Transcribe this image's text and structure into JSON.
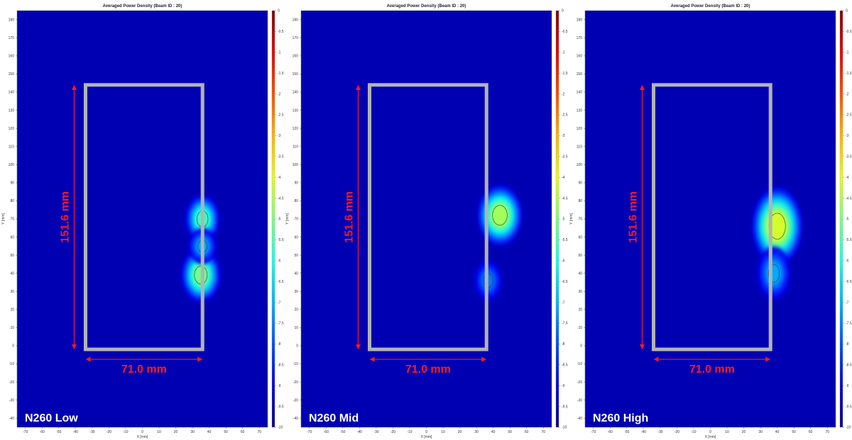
{
  "chart_data": [
    {
      "type": "heatmap",
      "title": "Averaged Power Density (Beam ID : 20)",
      "xlabel": "X [mm]",
      "ylabel": "Y [mm]",
      "xlim": [
        -75,
        75
      ],
      "ylim": [
        -45,
        185
      ],
      "x_ticks": [
        "-70",
        "-60",
        "-50",
        "-40",
        "-30",
        "-20",
        "-10",
        "0",
        "10",
        "20",
        "30",
        "40",
        "50",
        "60",
        "70"
      ],
      "y_ticks": [
        "-40",
        "-30",
        "-20",
        "-10",
        "0",
        "10",
        "20",
        "30",
        "40",
        "50",
        "60",
        "70",
        "80",
        "90",
        "100",
        "110",
        "120",
        "130",
        "140",
        "150",
        "160",
        "170",
        "180"
      ],
      "colorbar": {
        "ticks": [
          "0",
          "-0.5",
          "-1",
          "-1.5",
          "-2",
          "-2.5",
          "-3",
          "-3.5",
          "-4",
          "-4.5",
          "-5",
          "-5.5",
          "-6",
          "-6.5",
          "-7",
          "-7.5",
          "-8",
          "-8.5",
          "-9",
          "-9.5",
          "-10"
        ],
        "range": [
          -10,
          0
        ],
        "colormap": "jet"
      },
      "band_label": "N260 Low",
      "device_outline": {
        "x": [
          -34,
          36
        ],
        "y": [
          -2,
          144
        ],
        "color": "#b3b3b3"
      },
      "dimensions": {
        "height_label": "151.6 mm",
        "width_label": "71.0 mm",
        "color": "#ff1a1a"
      },
      "hotspots": [
        {
          "x": 36,
          "y": 70,
          "sx": 6,
          "sy": 8,
          "peak": -5.5
        },
        {
          "x": 35,
          "y": 39,
          "sx": 7,
          "sy": 9,
          "peak": -5.0
        },
        {
          "x": 36,
          "y": 55,
          "sx": 5,
          "sy": 6,
          "peak": -7.0
        }
      ]
    },
    {
      "type": "heatmap",
      "title": "Averaged Power Density (Beam ID : 20)",
      "xlabel": "X [mm]",
      "ylabel": "Y [mm]",
      "xlim": [
        -75,
        75
      ],
      "ylim": [
        -45,
        185
      ],
      "x_ticks": [
        "-70",
        "-60",
        "-50",
        "-40",
        "-30",
        "-20",
        "-10",
        "0",
        "10",
        "20",
        "30",
        "40",
        "50",
        "60",
        "70"
      ],
      "y_ticks": [
        "-40",
        "-30",
        "-20",
        "-10",
        "0",
        "10",
        "20",
        "30",
        "40",
        "50",
        "60",
        "70",
        "80",
        "90",
        "100",
        "110",
        "120",
        "130",
        "140",
        "150",
        "160",
        "170",
        "180"
      ],
      "colorbar": {
        "ticks": [
          "0",
          "-0.5",
          "-1",
          "-1.5",
          "-2",
          "-2.5",
          "-3",
          "-3.5",
          "-4",
          "-4.5",
          "-5",
          "-5.5",
          "-6",
          "-6.5",
          "-7",
          "-7.5",
          "-8",
          "-8.5",
          "-9",
          "-9.5",
          "-10"
        ],
        "range": [
          -10,
          0
        ],
        "colormap": "jet"
      },
      "band_label": "N260 Mid",
      "device_outline": {
        "x": [
          -34,
          36
        ],
        "y": [
          -2,
          144
        ],
        "color": "#b3b3b3"
      },
      "dimensions": {
        "height_label": "151.6 mm",
        "width_label": "71.0 mm",
        "color": "#ff1a1a"
      },
      "hotspots": [
        {
          "x": 44,
          "y": 72,
          "sx": 8,
          "sy": 10,
          "peak": -4.5
        },
        {
          "x": 37,
          "y": 36,
          "sx": 5,
          "sy": 7,
          "peak": -7.5
        }
      ]
    },
    {
      "type": "heatmap",
      "title": "Averaged Power Density (Beam ID : 20)",
      "xlabel": "X [mm]",
      "ylabel": "Y [mm]",
      "xlim": [
        -75,
        75
      ],
      "ylim": [
        -45,
        185
      ],
      "x_ticks": [
        "-70",
        "-60",
        "-50",
        "-40",
        "-30",
        "-20",
        "-10",
        "0",
        "10",
        "20",
        "30",
        "40",
        "50",
        "60",
        "70"
      ],
      "y_ticks": [
        "-40",
        "-30",
        "-20",
        "-10",
        "0",
        "10",
        "20",
        "30",
        "40",
        "50",
        "60",
        "70",
        "80",
        "90",
        "100",
        "110",
        "120",
        "130",
        "140",
        "150",
        "160",
        "170",
        "180"
      ],
      "colorbar": {
        "ticks": [
          "0",
          "-0.5",
          "-1",
          "-1.5",
          "-2",
          "-2.5",
          "-3",
          "-3.5",
          "-4",
          "-4.5",
          "-5",
          "-5.5",
          "-6",
          "-6.5",
          "-7",
          "-7.5",
          "-8",
          "-8.5",
          "-9",
          "-9.5",
          "-10"
        ],
        "range": [
          -10,
          0
        ],
        "colormap": "jet"
      },
      "band_label": "N260 High",
      "device_outline": {
        "x": [
          -34,
          36
        ],
        "y": [
          -2,
          144
        ],
        "color": "#b3b3b3"
      },
      "dimensions": {
        "height_label": "151.6 mm",
        "width_label": "71.0 mm",
        "color": "#ff1a1a"
      },
      "hotspots": [
        {
          "x": 40,
          "y": 66,
          "sx": 9,
          "sy": 13,
          "peak": -4.0
        },
        {
          "x": 38,
          "y": 40,
          "sx": 6,
          "sy": 9,
          "peak": -7.0
        }
      ]
    }
  ]
}
